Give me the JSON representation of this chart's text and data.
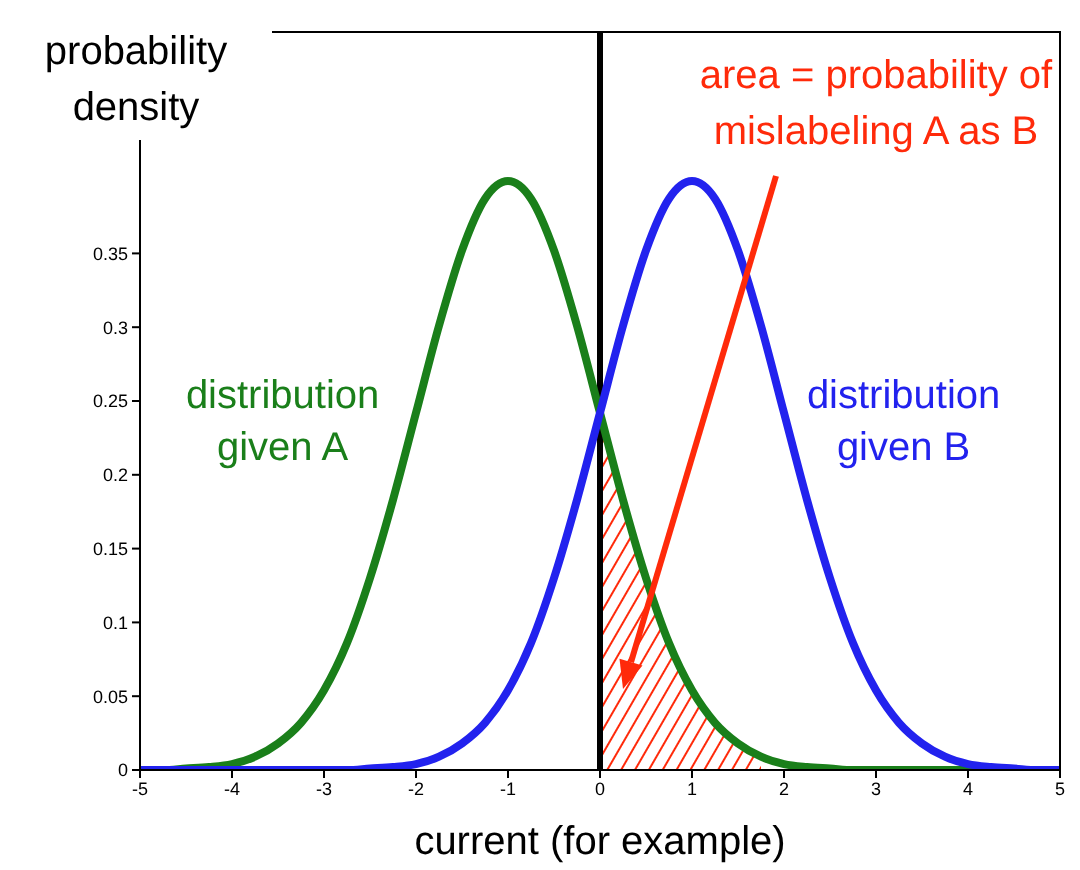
{
  "chart_data": {
    "type": "line",
    "xlabel": "current (for example)",
    "ylabel": "probability density",
    "x": [
      -5,
      -4.75,
      -4.5,
      -4.25,
      -4,
      -3.75,
      -3.5,
      -3.25,
      -3,
      -2.75,
      -2.5,
      -2.25,
      -2,
      -1.75,
      -1.5,
      -1.25,
      -1,
      -0.75,
      -0.5,
      -0.25,
      0,
      0.25,
      0.5,
      0.75,
      1,
      1.25,
      1.5,
      1.75,
      2,
      2.25,
      2.5,
      2.75,
      3,
      3.25,
      3.5,
      3.75,
      4,
      4.25,
      4.5,
      4.75,
      5
    ],
    "series": [
      {
        "name": "distribution given A",
        "color": "#1a7f1a",
        "values": [
          0,
          0,
          0.001,
          0.002,
          0.004,
          0.009,
          0.018,
          0.032,
          0.054,
          0.086,
          0.13,
          0.183,
          0.242,
          0.301,
          0.352,
          0.387,
          0.399,
          0.387,
          0.352,
          0.301,
          0.242,
          0.183,
          0.13,
          0.086,
          0.054,
          0.032,
          0.018,
          0.009,
          0.004,
          0.002,
          0.001,
          0,
          0,
          0,
          0,
          0,
          0,
          0,
          null,
          null,
          null
        ]
      },
      {
        "name": "distribution given B",
        "color": "#2222ee",
        "values": [
          0,
          0,
          0,
          0,
          0,
          0,
          0,
          0,
          0,
          0,
          0.001,
          0.002,
          0.004,
          0.009,
          0.018,
          0.032,
          0.054,
          0.086,
          0.13,
          0.183,
          0.242,
          0.301,
          0.352,
          0.387,
          0.399,
          0.387,
          0.352,
          0.301,
          0.242,
          0.183,
          0.13,
          0.086,
          0.054,
          0.032,
          0.018,
          0.009,
          0.004,
          0.002,
          0.001,
          0,
          0
        ]
      },
      {
        "type": "area",
        "color": "#ff2a0a",
        "x": [
          0,
          0.25,
          0.5,
          0.75,
          1,
          1.25,
          1.5,
          1.75
        ],
        "values": [
          0.242,
          0.183,
          0.13,
          0.086,
          0.054,
          0.032,
          0.018,
          0.009
        ]
      }
    ],
    "annotations": [
      "area = probability of mislabeling A as B"
    ],
    "ref_lines": [
      {
        "axis": "x",
        "value": 0,
        "color": "#000000"
      }
    ],
    "xlim": [
      -5,
      5
    ],
    "xticks": [
      -5,
      -4,
      -3,
      -2,
      -1,
      0,
      1,
      2,
      3,
      4,
      5
    ],
    "ylim": [
      0,
      0.5
    ],
    "yticks": [
      0,
      0.05,
      0.1,
      0.15,
      0.2,
      0.25,
      0.3,
      0.35
    ],
    "grid": false,
    "legend": false
  }
}
